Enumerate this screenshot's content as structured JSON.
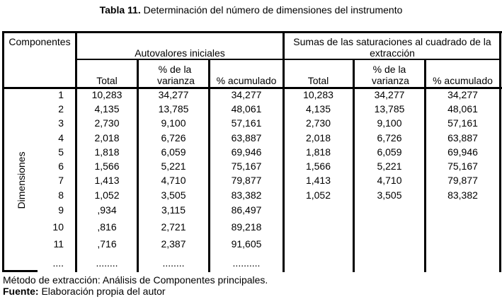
{
  "title": {
    "bold": "Tabla 11.",
    "rest": " Determinación del número de dimensiones del instrumento"
  },
  "table": {
    "corner_header": "Componentes",
    "group_headers": [
      "Autovalores iniciales",
      "Sumas de las saturaciones al cuadrado de la extracción"
    ],
    "sub_headers": [
      "Total",
      "% de la varianza",
      "% acumulado",
      "Total",
      "% de la varianza",
      "% acumulado"
    ],
    "row_group_label": "Dimensiones",
    "rows": [
      [
        "1",
        "10,283",
        "34,277",
        "34,277",
        "10,283",
        "34,277",
        "34,277"
      ],
      [
        "2",
        "4,135",
        "13,785",
        "48,061",
        "4,135",
        "13,785",
        "48,061"
      ],
      [
        "3",
        "2,730",
        "9,100",
        "57,161",
        "2,730",
        "9,100",
        "57,161"
      ],
      [
        "4",
        "2,018",
        "6,726",
        "63,887",
        "2,018",
        "6,726",
        "63,887"
      ],
      [
        "5",
        "1,818",
        "6,059",
        "69,946",
        "1,818",
        "6,059",
        "69,946"
      ],
      [
        "6",
        "1,566",
        "5,221",
        "75,167",
        "1,566",
        "5,221",
        "75,167"
      ],
      [
        "7",
        "1,413",
        "4,710",
        "79,877",
        "1,413",
        "4,710",
        "79,877"
      ],
      [
        "8",
        "1,052",
        "3,505",
        "83,382",
        "1,052",
        "3,505",
        "83,382"
      ],
      [
        "9",
        ",934",
        "3,115",
        "86,497",
        "",
        "",
        ""
      ],
      [
        "10",
        ",816",
        "2,721",
        "89,218",
        "",
        "",
        ""
      ],
      [
        "11",
        ",716",
        "2,387",
        "91,605",
        "",
        "",
        ""
      ],
      [
        "....",
        "........",
        "........",
        "..........",
        "",
        "",
        ""
      ]
    ]
  },
  "footnote": "Método de extracción: Análisis de Componentes principales.",
  "source": {
    "bold": "Fuente:",
    "rest": " Elaboración propia del autor"
  }
}
